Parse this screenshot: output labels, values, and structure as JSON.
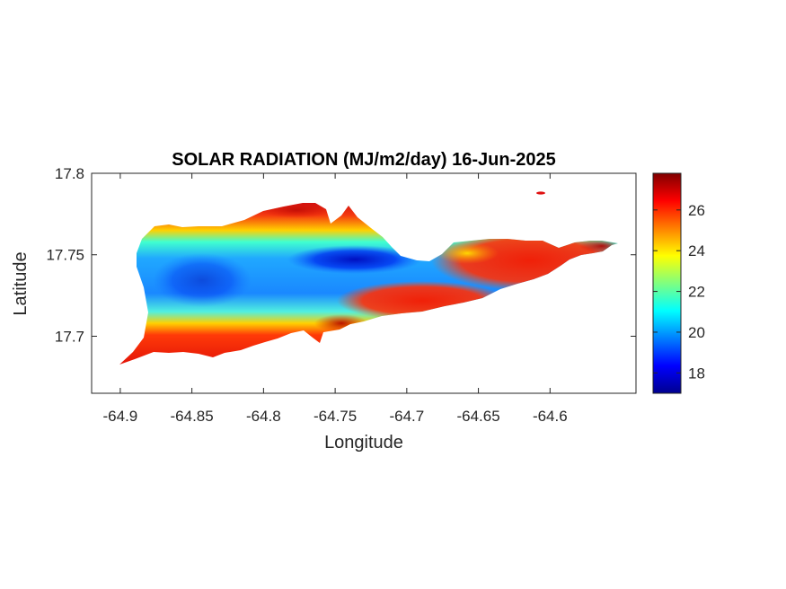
{
  "chart_data": {
    "type": "heatmap",
    "title": "SOLAR RADIATION (MJ/m2/day) 16-Jun-2025",
    "xlabel": "Longitude",
    "ylabel": "Latitude",
    "xlim": [
      -64.92,
      -64.54
    ],
    "ylim": [
      17.665,
      17.8
    ],
    "xticks": [
      -64.9,
      -64.85,
      -64.8,
      -64.75,
      -64.7,
      -64.65,
      -64.6
    ],
    "xtick_labels": [
      "-64.9",
      "-64.85",
      "-64.8",
      "-64.75",
      "-64.7",
      "-64.65",
      "-64.6"
    ],
    "yticks": [
      17.7,
      17.75,
      17.8
    ],
    "ytick_labels": [
      "17.7",
      "17.75",
      "17.8"
    ],
    "colorbar": {
      "colormap": "jet",
      "range": [
        17.0,
        27.8
      ],
      "ticks": [
        18,
        20,
        22,
        24,
        26
      ],
      "tick_labels": [
        "18",
        "20",
        "22",
        "24",
        "26"
      ]
    },
    "field_summary": {
      "min": 17.2,
      "max": 27.6,
      "regions": [
        {
          "lon": -64.86,
          "lat": 17.74,
          "value": 20.0
        },
        {
          "lon": -64.84,
          "lat": 17.735,
          "value": 19.6
        },
        {
          "lon": -64.8,
          "lat": 17.745,
          "value": 19.8
        },
        {
          "lon": -64.74,
          "lat": 17.748,
          "value": 17.8
        },
        {
          "lon": -64.72,
          "lat": 17.747,
          "value": 18.6
        },
        {
          "lon": -64.83,
          "lat": 17.77,
          "value": 25.5
        },
        {
          "lon": -64.78,
          "lat": 17.776,
          "value": 26.5
        },
        {
          "lon": -64.82,
          "lat": 17.705,
          "value": 23.5
        },
        {
          "lon": -64.85,
          "lat": 17.695,
          "value": 26.5
        },
        {
          "lon": -64.72,
          "lat": 17.72,
          "value": 26.5
        },
        {
          "lon": -64.66,
          "lat": 17.74,
          "value": 25.5
        },
        {
          "lon": -64.61,
          "lat": 17.745,
          "value": 27.0
        },
        {
          "lon": -64.58,
          "lat": 17.753,
          "value": 27.5
        }
      ]
    }
  }
}
